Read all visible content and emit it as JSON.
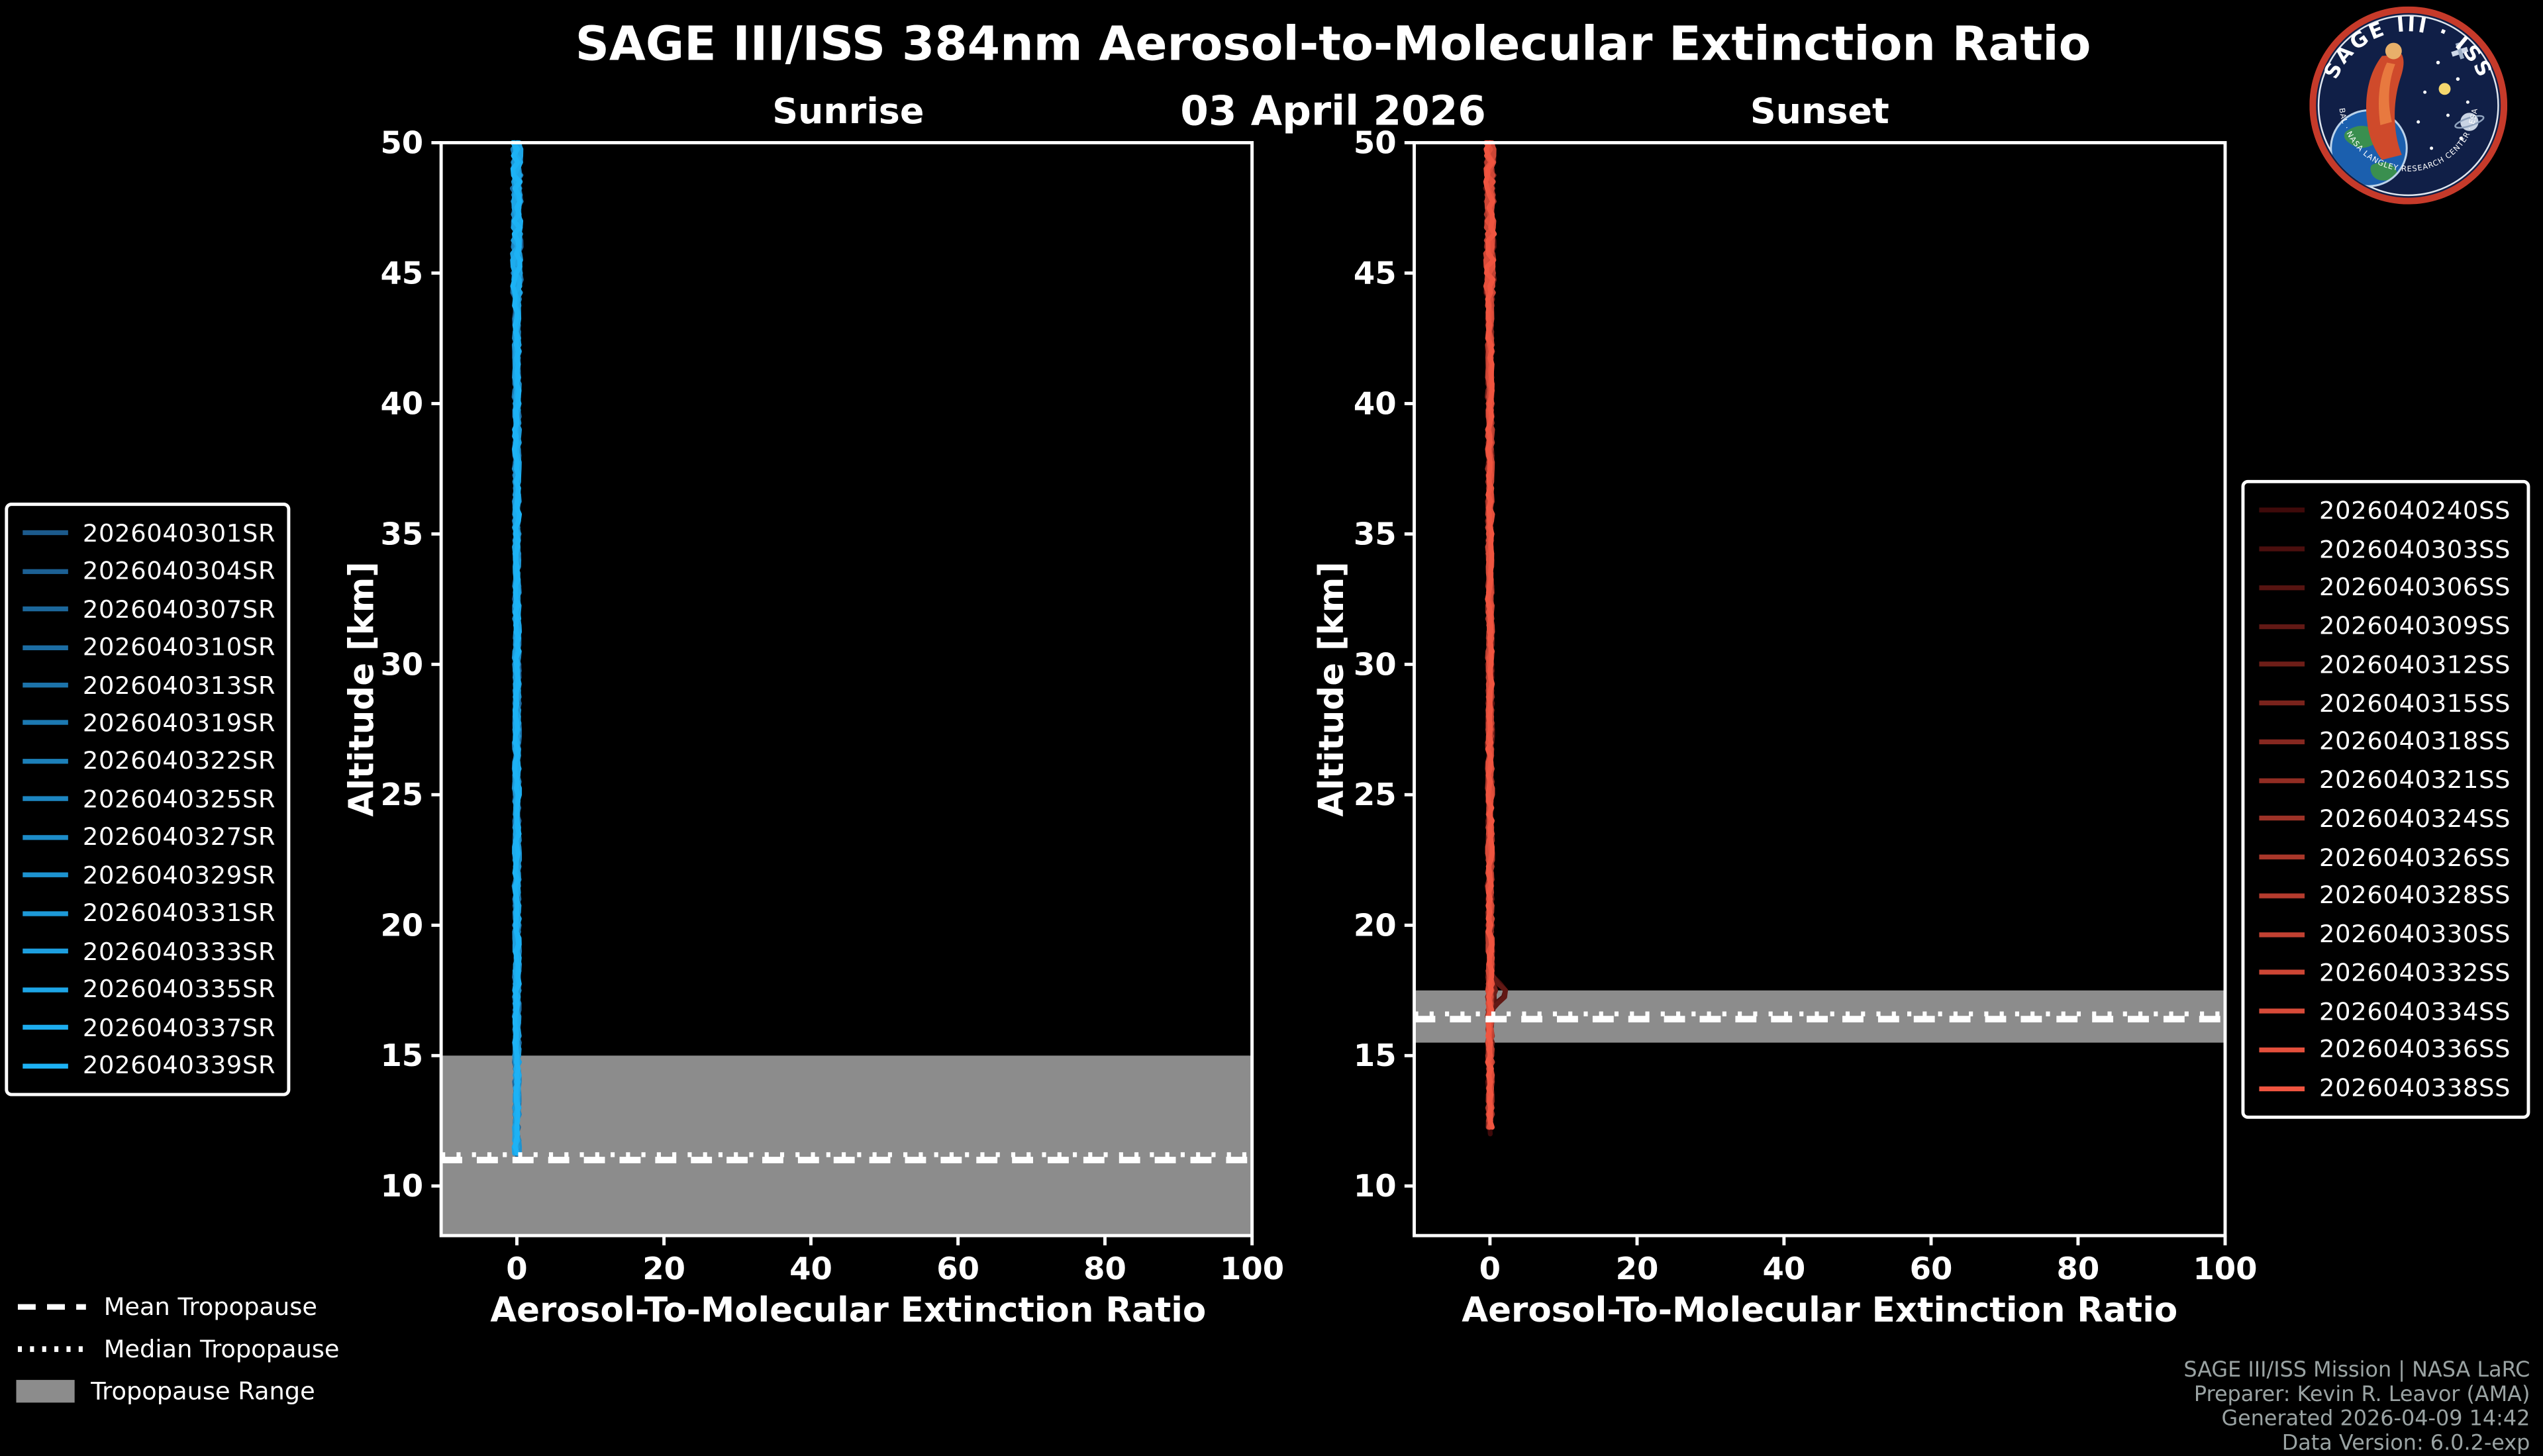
{
  "header": {
    "title": "SAGE III/ISS 384nm Aerosol-to-Molecular Extinction Ratio",
    "date": "03 April 2026"
  },
  "logo": {
    "arc_top": "SAGE III · ISS",
    "arc_bottom": "BAL · NASA LANGLEY RESEARCH CENTER · ESA"
  },
  "colors": {
    "background": "#000000",
    "foreground": "#ffffff",
    "tropopause_band": "#8c8c8c",
    "credits_text": "#9aa3a3",
    "sunrise_line": "#1db2f5",
    "sunset_line": "#ef5844"
  },
  "tropopause_legend": {
    "mean_label": "Mean Tropopause",
    "median_label": "Median Tropopause",
    "range_label": "Tropopause Range"
  },
  "credits": {
    "lines": [
      "SAGE III/ISS Mission | NASA LaRC",
      "Preparer: Kevin R. Leavor (AMA)",
      "Generated 2026-04-09 14:42",
      "Data Version: 6.0.2-exp"
    ]
  },
  "chart_data": [
    {
      "type": "line",
      "panel": "sunrise",
      "title": "Sunrise",
      "xlabel": "Aerosol-To-Molecular Extinction Ratio",
      "ylabel": "Altitude [km]",
      "xlim": [
        -10.3,
        100
      ],
      "ylim": [
        8.1,
        50
      ],
      "xticks": [
        0,
        20,
        40,
        60,
        80,
        100
      ],
      "yticks": [
        10,
        15,
        20,
        25,
        30,
        35,
        40,
        45,
        50
      ],
      "grid": false,
      "legend_position": "outside-left",
      "line_color_start": "#1c5a8c",
      "line_color_end": "#1db2f5",
      "series": [
        "2026040301SR",
        "2026040304SR",
        "2026040307SR",
        "2026040310SR",
        "2026040313SR",
        "2026040319SR",
        "2026040322SR",
        "2026040325SR",
        "2026040327SR",
        "2026040329SR",
        "2026040331SR",
        "2026040333SR",
        "2026040335SR",
        "2026040337SR",
        "2026040339SR"
      ],
      "profile": {
        "x_nominal": 0,
        "altitude_top_km": 50,
        "altitude_bottom_km": 11.0,
        "wiggle_x_units": 0.55
      },
      "tropopause": {
        "mean_km": 11.0,
        "median_km": 11.2,
        "range_km": [
          8.1,
          15.0
        ]
      }
    },
    {
      "type": "line",
      "panel": "sunset",
      "title": "Sunset",
      "xlabel": "Aerosol-To-Molecular Extinction Ratio",
      "ylabel": "Altitude [km]",
      "xlim": [
        -10.3,
        100
      ],
      "ylim": [
        8.1,
        50
      ],
      "xticks": [
        0,
        20,
        40,
        60,
        80,
        100
      ],
      "yticks": [
        10,
        15,
        20,
        25,
        30,
        35,
        40,
        45,
        50
      ],
      "grid": false,
      "legend_position": "outside-right",
      "line_color_start": "#3f0a0a",
      "line_color_end": "#f05540",
      "series": [
        "2026040240SS",
        "2026040303SS",
        "2026040306SS",
        "2026040309SS",
        "2026040312SS",
        "2026040315SS",
        "2026040318SS",
        "2026040321SS",
        "2026040324SS",
        "2026040326SS",
        "2026040328SS",
        "2026040330SS",
        "2026040332SS",
        "2026040334SS",
        "2026040336SS",
        "2026040338SS"
      ],
      "profile": {
        "x_nominal": 0,
        "altitude_top_km": 50,
        "altitude_bottom_km": 12.0,
        "wiggle_x_units": 0.55,
        "anomaly": {
          "altitude_km": 17.4,
          "max_x": 2.3
        }
      },
      "tropopause": {
        "mean_km": 16.4,
        "median_km": 16.6,
        "range_km": [
          15.5,
          17.5
        ]
      }
    }
  ]
}
